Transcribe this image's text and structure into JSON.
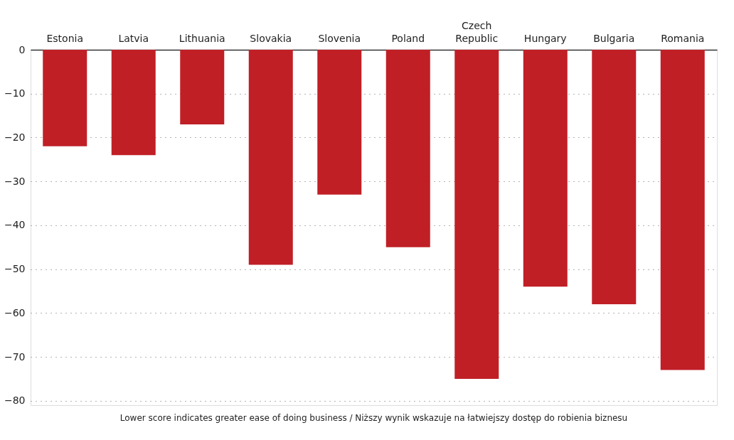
{
  "chart_data": {
    "type": "bar",
    "categories": [
      "Estonia",
      "Latvia",
      "Lithuania",
      "Slovakia",
      "Slovenia",
      "Poland",
      "Czech\nRepublic",
      "Hungary",
      "Bulgaria",
      "Romania"
    ],
    "values": [
      -22,
      -24,
      -17,
      -49,
      -33,
      -45,
      -75,
      -54,
      -58,
      -73
    ],
    "color": "#c01f26",
    "ylim": [
      -81,
      0
    ],
    "yticks": [
      0,
      -10,
      -20,
      -30,
      -40,
      -50,
      -60,
      -70,
      -80
    ],
    "grid": "y",
    "annotations": [
      "Lower score indicates greater ease of doing business / Niższy wynik wskazuje na łatwiejszy dostęp do robienia biznesu"
    ]
  }
}
